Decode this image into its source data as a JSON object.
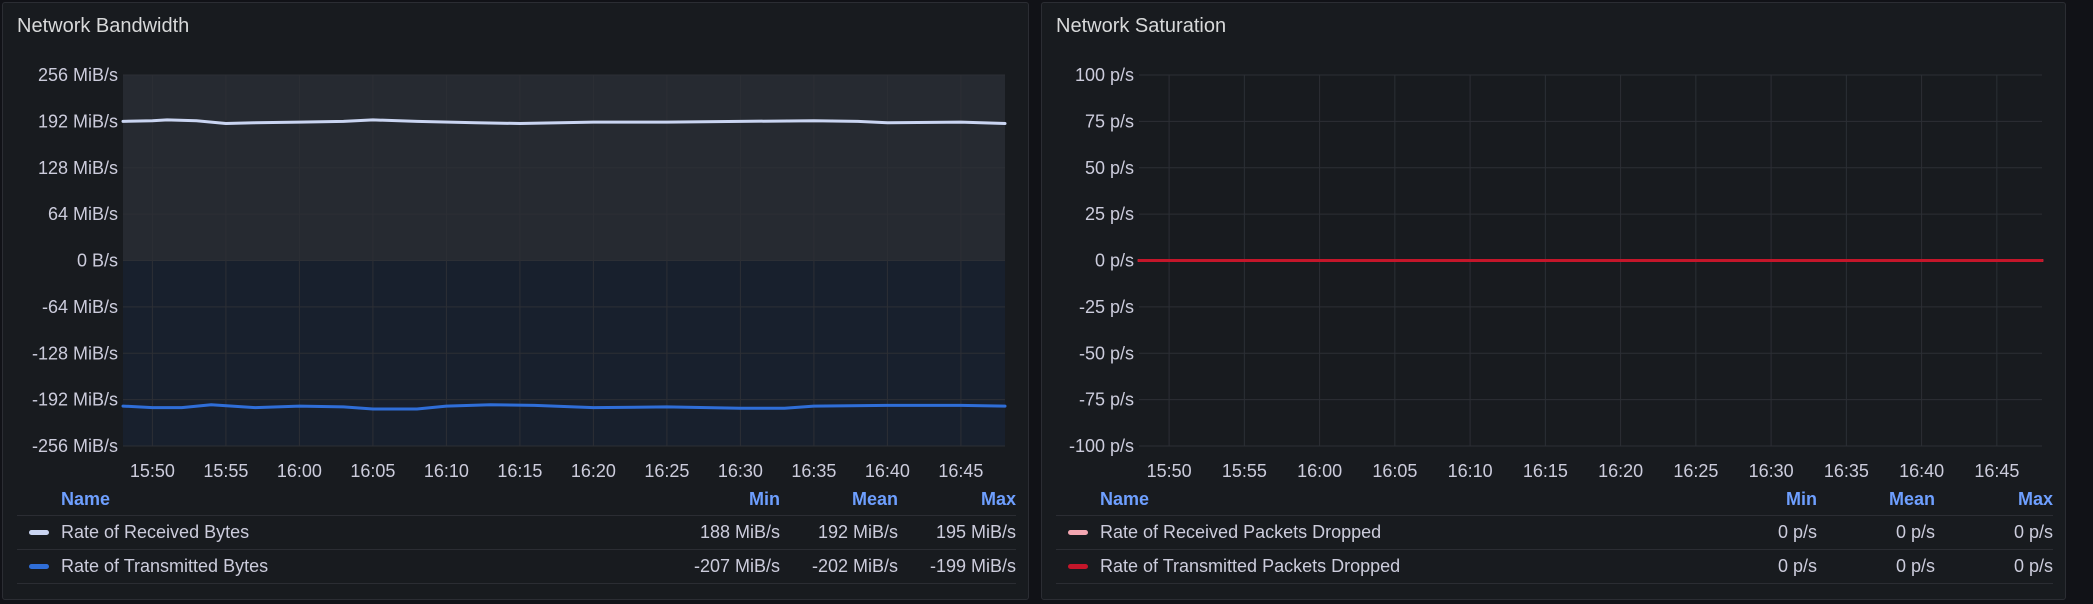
{
  "colors": {
    "received_bytes": "#cad5f2",
    "transmitted_bytes": "#2f6ed8",
    "received_dropped": "#f4a7b2",
    "transmitted_dropped": "#c4162a",
    "legend_header": "#6e9fff"
  },
  "panels": [
    {
      "title": "Network Bandwidth",
      "legend": {
        "headers": {
          "name": "Name",
          "min": "Min",
          "mean": "Mean",
          "max": "Max"
        },
        "rows": [
          {
            "name": "Rate of Received Bytes",
            "min": "188 MiB/s",
            "mean": "192 MiB/s",
            "max": "195 MiB/s"
          },
          {
            "name": "Rate of Transmitted Bytes",
            "min": "-207 MiB/s",
            "mean": "-202 MiB/s",
            "max": "-199 MiB/s"
          }
        ]
      }
    },
    {
      "title": "Network Saturation",
      "legend": {
        "headers": {
          "name": "Name",
          "min": "Min",
          "mean": "Mean",
          "max": "Max"
        },
        "rows": [
          {
            "name": "Rate of Received Packets Dropped",
            "min": "0 p/s",
            "mean": "0 p/s",
            "max": "0 p/s"
          },
          {
            "name": "Rate of Transmitted Packets Dropped",
            "min": "0 p/s",
            "mean": "0 p/s",
            "max": "0 p/s"
          }
        ]
      }
    }
  ],
  "chart_data": [
    {
      "type": "area",
      "title": "Network Bandwidth",
      "x_ticks": [
        "15:50",
        "15:55",
        "16:00",
        "16:05",
        "16:10",
        "16:15",
        "16:20",
        "16:25",
        "16:30",
        "16:35",
        "16:40",
        "16:45"
      ],
      "x_range": [
        "15:48",
        "16:48"
      ],
      "y_ticks": [
        "256 MiB/s",
        "192 MiB/s",
        "128 MiB/s",
        "64 MiB/s",
        "0 B/s",
        "-64 MiB/s",
        "-128 MiB/s",
        "-192 MiB/s",
        "-256 MiB/s"
      ],
      "ylim": [
        -256,
        256
      ],
      "grid": true,
      "legend_placement": "bottom",
      "series": [
        {
          "name": "Rate of Received Bytes",
          "color": "#cad5f2",
          "x": [
            "15:48",
            "15:50",
            "15:51",
            "15:53",
            "15:55",
            "15:57",
            "16:00",
            "16:03",
            "16:05",
            "16:08",
            "16:12",
            "16:15",
            "16:20",
            "16:25",
            "16:30",
            "16:35",
            "16:38",
            "16:40",
            "16:45",
            "16:48"
          ],
          "values": [
            192,
            193,
            194,
            193,
            189,
            190,
            191,
            192,
            194,
            192,
            190,
            189,
            191,
            191,
            192,
            193,
            192,
            190,
            191,
            189
          ]
        },
        {
          "name": "Rate of Transmitted Bytes",
          "color": "#2f6ed8",
          "x": [
            "15:48",
            "15:50",
            "15:52",
            "15:54",
            "15:57",
            "16:00",
            "16:03",
            "16:05",
            "16:08",
            "16:10",
            "16:13",
            "16:16",
            "16:20",
            "16:25",
            "16:30",
            "16:33",
            "16:35",
            "16:40",
            "16:45",
            "16:48"
          ],
          "values": [
            -201,
            -203,
            -203,
            -199,
            -203,
            -201,
            -202,
            -205,
            -205,
            -201,
            -199,
            -200,
            -203,
            -202,
            -204,
            -204,
            -201,
            -200,
            -200,
            -201
          ]
        }
      ]
    },
    {
      "type": "line",
      "title": "Network Saturation",
      "x_ticks": [
        "15:50",
        "15:55",
        "16:00",
        "16:05",
        "16:10",
        "16:15",
        "16:20",
        "16:25",
        "16:30",
        "16:35",
        "16:40",
        "16:45"
      ],
      "x_range": [
        "15:48",
        "16:48"
      ],
      "y_ticks": [
        "100 p/s",
        "75 p/s",
        "50 p/s",
        "25 p/s",
        "0 p/s",
        "-25 p/s",
        "-50 p/s",
        "-75 p/s",
        "-100 p/s"
      ],
      "ylim": [
        -100,
        100
      ],
      "grid": true,
      "legend_placement": "bottom",
      "series": [
        {
          "name": "Rate of Received Packets Dropped",
          "color": "#f4a7b2",
          "x": [
            "15:48",
            "16:48"
          ],
          "values": [
            0,
            0
          ]
        },
        {
          "name": "Rate of Transmitted Packets Dropped",
          "color": "#c4162a",
          "x": [
            "15:48",
            "16:48"
          ],
          "values": [
            0,
            0
          ]
        }
      ]
    }
  ]
}
